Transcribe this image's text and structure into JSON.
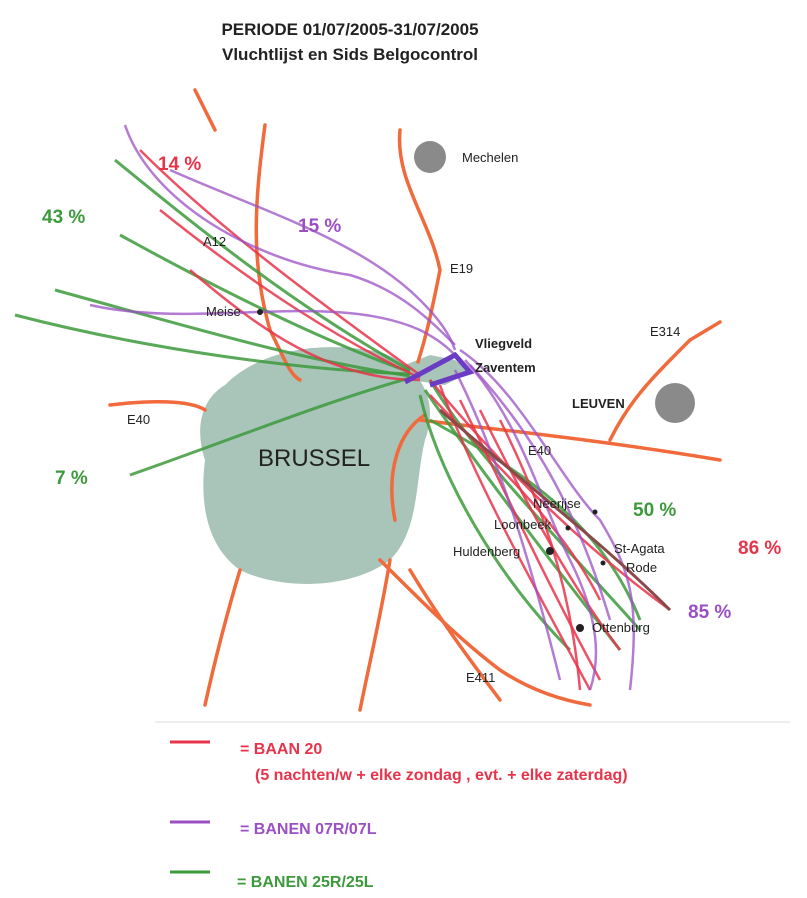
{
  "title": [
    "PERIODE 01/07/2005-31/07/2005",
    "Vluchtlijst en Sids Belgocontrol"
  ],
  "places": [
    "Mechelen",
    "Meise",
    "Vliegveld",
    "Zaventem",
    "LEUVEN",
    "BRUSSEL",
    "Neerijse",
    "Loonbeek",
    "Huldenberg",
    "St-Agata",
    "Rode",
    "Ottenburg"
  ],
  "roads": [
    "A12",
    "E19",
    "E314",
    "E40",
    "E40",
    "E411"
  ],
  "percentages": [
    "14 %",
    "43 %",
    "15 %",
    "7 %",
    "50 %",
    "86 %",
    "85 %"
  ],
  "legend": [
    {
      "label": "= BAAN 20",
      "note": "(5 nachten/w + elke zondag , evt. + elke zaterdag)"
    },
    {
      "label": "= BANEN 07R/07L"
    },
    {
      "label": "= BANEN 25R/25L"
    }
  ]
}
